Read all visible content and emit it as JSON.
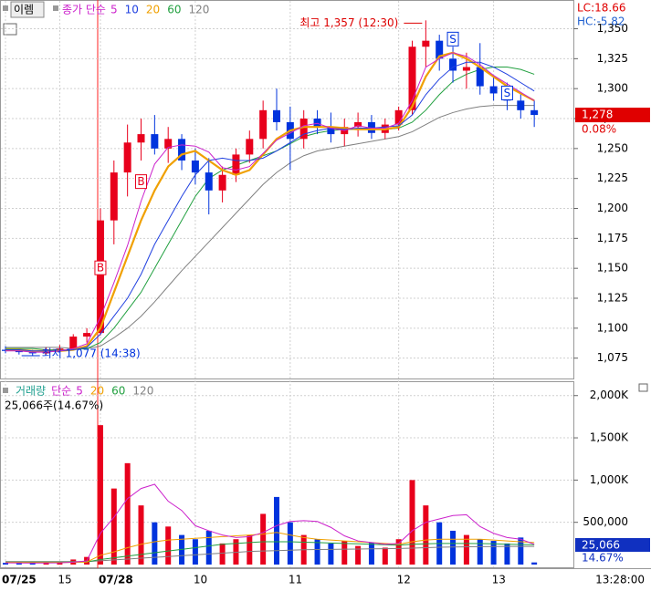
{
  "chart_data": [
    {
      "type": "candlestick",
      "title": "이렘",
      "ma_label": "종가 단순",
      "categories": [
        "07/25",
        null,
        null,
        null,
        "15",
        null,
        null,
        "07/28",
        null,
        null,
        null,
        null,
        null,
        null,
        "10",
        null,
        null,
        null,
        null,
        null,
        null,
        "11",
        null,
        null,
        null,
        null,
        null,
        null,
        null,
        "12",
        null,
        null,
        null,
        null,
        null,
        null,
        "13",
        null,
        null,
        null
      ],
      "open": [
        1082,
        1081,
        1080,
        1079,
        1082,
        1083,
        1093,
        1096,
        1190,
        1230,
        1255,
        1262,
        1250,
        1258,
        1240,
        1230,
        1215,
        1228,
        1245,
        1258,
        1282,
        1272,
        1258,
        1275,
        1268,
        1262,
        1268,
        1272,
        1263,
        1270,
        1282,
        1335,
        1340,
        1325,
        1315,
        1318,
        1302,
        1296,
        1290,
        1282
      ],
      "high": [
        1085,
        1083,
        1082,
        1084,
        1086,
        1095,
        1100,
        1200,
        1240,
        1270,
        1275,
        1278,
        1268,
        1262,
        1250,
        1242,
        1235,
        1250,
        1265,
        1290,
        1300,
        1285,
        1282,
        1282,
        1280,
        1275,
        1280,
        1278,
        1275,
        1285,
        1340,
        1357,
        1345,
        1335,
        1330,
        1338,
        1310,
        1305,
        1296,
        1290
      ],
      "low": [
        1079,
        1078,
        1077,
        1078,
        1080,
        1082,
        1088,
        1094,
        1170,
        1210,
        1240,
        1245,
        1238,
        1232,
        1220,
        1195,
        1205,
        1222,
        1238,
        1250,
        1265,
        1232,
        1250,
        1262,
        1255,
        1252,
        1260,
        1258,
        1258,
        1265,
        1278,
        1318,
        1315,
        1305,
        1300,
        1295,
        1290,
        1282,
        1275,
        1268
      ],
      "close": [
        1081,
        1080,
        1079,
        1082,
        1083,
        1093,
        1096,
        1190,
        1230,
        1255,
        1262,
        1250,
        1258,
        1240,
        1230,
        1215,
        1228,
        1245,
        1258,
        1282,
        1272,
        1258,
        1275,
        1268,
        1262,
        1268,
        1272,
        1263,
        1270,
        1282,
        1335,
        1340,
        1325,
        1315,
        1318,
        1302,
        1296,
        1290,
        1282,
        1278
      ],
      "up_color": "#e8001c",
      "down_color": "#0033dd",
      "series": [
        {
          "name": "5",
          "color": "#cc22cc",
          "values": [
            1081,
            1081,
            1080,
            1080,
            1081,
            1083,
            1087,
            1109,
            1138,
            1169,
            1206,
            1237,
            1251,
            1253,
            1252,
            1247,
            1234,
            1232,
            1235,
            1246,
            1257,
            1263,
            1269,
            1271,
            1267,
            1265,
            1269,
            1267,
            1267,
            1271,
            1290,
            1318,
            1325,
            1330,
            1327,
            1320,
            1311,
            1304,
            1297,
            1290
          ]
        },
        {
          "name": "10",
          "color": "#2040e0",
          "values": [
            1082,
            1082,
            1081,
            1081,
            1081,
            1082,
            1084,
            1095,
            1110,
            1125,
            1145,
            1170,
            1190,
            1210,
            1228,
            1240,
            1242,
            1240,
            1240,
            1242,
            1248,
            1255,
            1262,
            1265,
            1267,
            1266,
            1267,
            1267,
            1268,
            1269,
            1278,
            1295,
            1308,
            1318,
            1322,
            1322,
            1318,
            1312,
            1305,
            1298
          ]
        },
        {
          "name": "20",
          "color": "#f0a000",
          "values": [
            1082,
            1082,
            1081,
            1081,
            1081,
            1082,
            1085,
            1100,
            1130,
            1160,
            1190,
            1215,
            1235,
            1245,
            1248,
            1240,
            1232,
            1228,
            1232,
            1245,
            1258,
            1265,
            1268,
            1268,
            1268,
            1267,
            1266,
            1266,
            1266,
            1268,
            1285,
            1310,
            1327,
            1330,
            1325,
            1318,
            1310,
            1302,
            1296,
            1290
          ]
        },
        {
          "name": "60",
          "color": "#22a040",
          "values": [
            1083,
            1083,
            1083,
            1082,
            1082,
            1082,
            1083,
            1088,
            1100,
            1115,
            1130,
            1150,
            1170,
            1190,
            1210,
            1225,
            1232,
            1236,
            1240,
            1244,
            1248,
            1254,
            1260,
            1263,
            1265,
            1266,
            1266,
            1266,
            1266,
            1267,
            1272,
            1282,
            1295,
            1306,
            1312,
            1316,
            1318,
            1318,
            1316,
            1312
          ]
        },
        {
          "name": "120",
          "color": "#808080",
          "values": [
            1084,
            1084,
            1084,
            1084,
            1084,
            1083,
            1083,
            1085,
            1092,
            1100,
            1110,
            1122,
            1135,
            1148,
            1160,
            1172,
            1184,
            1196,
            1208,
            1220,
            1230,
            1238,
            1244,
            1248,
            1250,
            1252,
            1254,
            1256,
            1258,
            1260,
            1264,
            1270,
            1276,
            1280,
            1283,
            1285,
            1286,
            1286,
            1286,
            1286
          ]
        }
      ],
      "ylim": [
        1058,
        1374
      ],
      "yticks": [
        {
          "value": 1075,
          "label": "1,075"
        },
        {
          "value": 1100,
          "label": "1,100"
        },
        {
          "value": 1125,
          "label": "1,125"
        },
        {
          "value": 1150,
          "label": "1,150"
        },
        {
          "value": 1175,
          "label": "1,175"
        },
        {
          "value": 1200,
          "label": "1,200"
        },
        {
          "value": 1225,
          "label": "1,225"
        },
        {
          "value": 1250,
          "label": "1,250"
        },
        {
          "value": 1275,
          "label": "1,275"
        },
        {
          "value": 1300,
          "label": "1,300"
        },
        {
          "value": 1325,
          "label": "1,325"
        },
        {
          "value": 1350,
          "label": "1,350"
        }
      ],
      "signals": [
        {
          "label": "B",
          "index": 7,
          "price": 1150
        },
        {
          "label": "B",
          "index": 10,
          "price": 1222
        },
        {
          "label": "S",
          "index": 33,
          "price": 1341
        },
        {
          "label": "S",
          "index": 37,
          "price": 1296
        }
      ],
      "high_note": {
        "label": "최고 1,357 (12:30)",
        "index": 31,
        "value": 1357
      },
      "low_note": {
        "label": "최저 1,077 (14:38)",
        "index": 2,
        "value": 1077
      },
      "last_price": {
        "value": 1278,
        "label": "1,278"
      },
      "change": "0.08%",
      "lc": "LC:18.66",
      "hc": "HC:-5.82"
    },
    {
      "type": "bar",
      "title": "거래량",
      "ma_label": "단순",
      "values": [
        20000,
        15000,
        18000,
        22000,
        25000,
        60000,
        90000,
        1650000,
        900000,
        1200000,
        700000,
        500000,
        450000,
        350000,
        300000,
        400000,
        250000,
        300000,
        350000,
        600000,
        800000,
        500000,
        350000,
        300000,
        250000,
        280000,
        220000,
        260000,
        200000,
        300000,
        1000000,
        700000,
        500000,
        400000,
        350000,
        300000,
        280000,
        250000,
        320000,
        25066
      ],
      "series": [
        {
          "name": "5",
          "color": "#cc22cc",
          "values": [
            20000,
            19000,
            18000,
            19000,
            20000,
            28000,
            43000,
            370000,
            560000,
            780000,
            900000,
            950000,
            750000,
            640000,
            460000,
            400000,
            350000,
            320000,
            330000,
            380000,
            460000,
            510000,
            520000,
            510000,
            440000,
            340000,
            280000,
            260000,
            240000,
            250000,
            400000,
            500000,
            540000,
            580000,
            590000,
            450000,
            370000,
            320000,
            300000,
            240000
          ]
        },
        {
          "name": "20",
          "color": "#f0a000",
          "values": [
            25000,
            25000,
            24000,
            24000,
            24000,
            26000,
            30000,
            110000,
            150000,
            200000,
            240000,
            270000,
            290000,
            300000,
            310000,
            320000,
            330000,
            340000,
            350000,
            360000,
            380000,
            350000,
            320000,
            300000,
            290000,
            280000,
            270000,
            260000,
            250000,
            240000,
            270000,
            290000,
            300000,
            300000,
            300000,
            300000,
            290000,
            280000,
            270000,
            260000
          ]
        },
        {
          "name": "60",
          "color": "#22a040",
          "values": [
            30000,
            30000,
            30000,
            30000,
            30000,
            30000,
            31000,
            60000,
            80000,
            100000,
            120000,
            140000,
            160000,
            180000,
            200000,
            220000,
            240000,
            250000,
            260000,
            270000,
            270000,
            270000,
            265000,
            260000,
            255000,
            250000,
            245000,
            240000,
            235000,
            230000,
            240000,
            245000,
            250000,
            250000,
            250000,
            248000,
            245000,
            240000,
            238000,
            235000
          ]
        },
        {
          "name": "120",
          "color": "#808080",
          "values": [
            35000,
            35000,
            35000,
            35000,
            35000,
            35000,
            35000,
            45000,
            55000,
            65000,
            75000,
            85000,
            95000,
            105000,
            115000,
            125000,
            135000,
            145000,
            155000,
            160000,
            165000,
            170000,
            175000,
            178000,
            180000,
            182000,
            184000,
            186000,
            188000,
            190000,
            195000,
            200000,
            205000,
            208000,
            210000,
            212000,
            213000,
            214000,
            215000,
            215000
          ]
        }
      ],
      "title_color": "#20a090",
      "ylim": [
        0,
        2170000
      ],
      "yticks": [
        {
          "value": 500000,
          "label": "500,000"
        },
        {
          "value": 1000000,
          "label": "1,000K"
        },
        {
          "value": 1500000,
          "label": "1,500K"
        },
        {
          "value": 2000000,
          "label": "2,000K"
        }
      ],
      "summary": "25,066주(14.67%)",
      "last_value": {
        "value": 25066,
        "label": "25,066"
      },
      "ratio": "14.67%"
    }
  ],
  "time": "13:28:00"
}
